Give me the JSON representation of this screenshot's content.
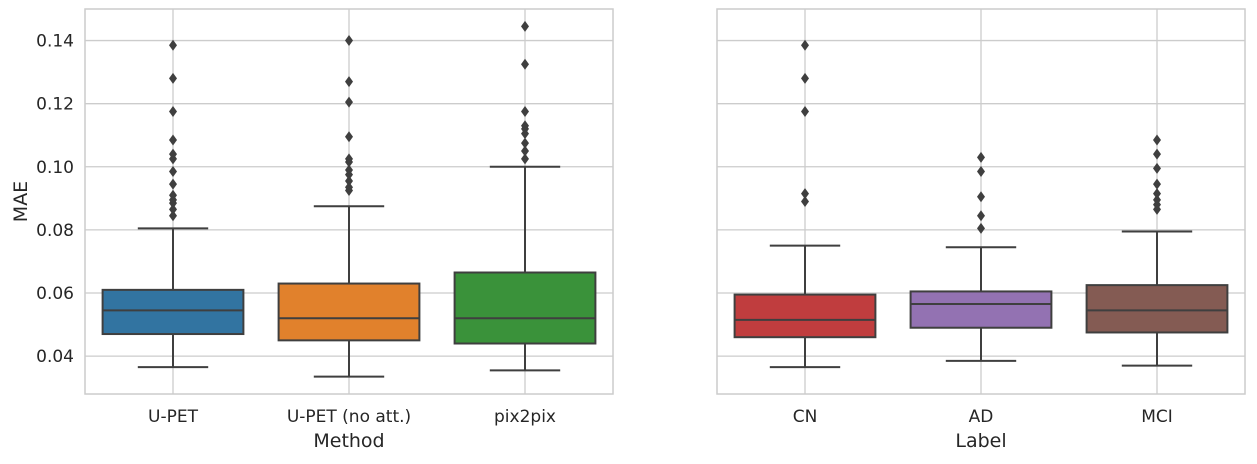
{
  "chart_data": [
    {
      "type": "box",
      "xlabel": "Method",
      "ylabel": "MAE",
      "ylim": [
        0.028,
        0.15
      ],
      "yticks": [
        0.04,
        0.06,
        0.08,
        0.1,
        0.12,
        0.14
      ],
      "ytick_labels": [
        "0.04",
        "0.06",
        "0.08",
        "0.10",
        "0.12",
        "0.14"
      ],
      "grid": true,
      "categories": [
        "U-PET",
        "U-PET (no att.)",
        "pix2pix"
      ],
      "colors": [
        "#3274a1",
        "#e1812c",
        "#3a923a"
      ],
      "boxes": [
        {
          "whisker_low": 0.0365,
          "q1": 0.047,
          "median": 0.0545,
          "q3": 0.061,
          "whisker_high": 0.0805,
          "outliers": [
            0.0845,
            0.0865,
            0.0885,
            0.0895,
            0.091,
            0.0945,
            0.0985,
            0.1025,
            0.104,
            0.1085,
            0.1175,
            0.128,
            0.1385
          ]
        },
        {
          "whisker_low": 0.0335,
          "q1": 0.045,
          "median": 0.052,
          "q3": 0.063,
          "whisker_high": 0.0875,
          "outliers": [
            0.0925,
            0.0935,
            0.0955,
            0.0975,
            0.099,
            0.1015,
            0.1025,
            0.1095,
            0.1205,
            0.127,
            0.14
          ]
        },
        {
          "whisker_low": 0.0355,
          "q1": 0.044,
          "median": 0.052,
          "q3": 0.0665,
          "whisker_high": 0.1,
          "outliers": [
            0.1025,
            0.105,
            0.1075,
            0.1105,
            0.112,
            0.113,
            0.1175,
            0.1325,
            0.1445
          ]
        }
      ]
    },
    {
      "type": "box",
      "xlabel": "Label",
      "ylabel": "",
      "ylim": [
        0.028,
        0.15
      ],
      "yticks": [
        0.04,
        0.06,
        0.08,
        0.1,
        0.12,
        0.14
      ],
      "grid": true,
      "categories": [
        "CN",
        "AD",
        "MCI"
      ],
      "colors": [
        "#c03d3e",
        "#9372b2",
        "#845b53"
      ],
      "boxes": [
        {
          "whisker_low": 0.0365,
          "q1": 0.046,
          "median": 0.0515,
          "q3": 0.0595,
          "whisker_high": 0.075,
          "outliers": [
            0.089,
            0.0915,
            0.1175,
            0.128,
            0.1385
          ]
        },
        {
          "whisker_low": 0.0385,
          "q1": 0.049,
          "median": 0.0565,
          "q3": 0.0605,
          "whisker_high": 0.0745,
          "outliers": [
            0.0805,
            0.0845,
            0.0905,
            0.0985,
            0.103
          ]
        },
        {
          "whisker_low": 0.037,
          "q1": 0.0475,
          "median": 0.0545,
          "q3": 0.0625,
          "whisker_high": 0.0795,
          "outliers": [
            0.0865,
            0.088,
            0.0895,
            0.0915,
            0.0945,
            0.0995,
            0.104,
            0.1085
          ]
        }
      ]
    }
  ]
}
